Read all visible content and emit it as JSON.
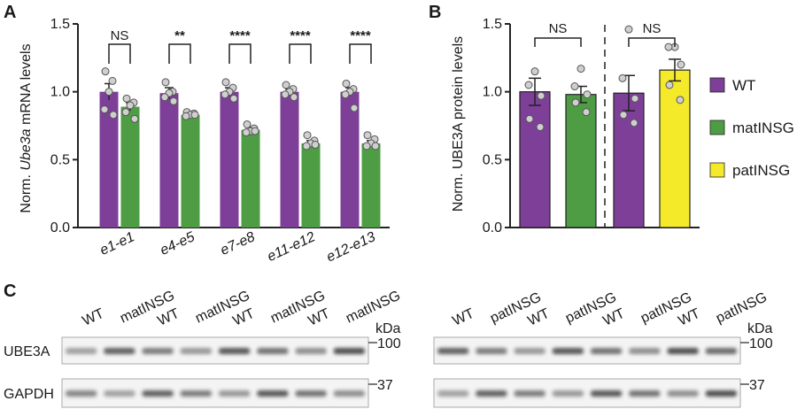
{
  "colors": {
    "WT": "#7e3f98",
    "matINSG": "#4e9d45",
    "patINSG": "#f5ea2a",
    "dot": "#cfcfcf"
  },
  "chart_data": [
    {
      "panel": "A",
      "type": "bar",
      "ylabel_pre": "Norm. ",
      "ylabel_italic": "Ube3a",
      "ylabel_post": " mRNA levels",
      "ylim": [
        0,
        1.5
      ],
      "yticks": [
        "0.0",
        "0.5",
        "1.0",
        "1.5"
      ],
      "categories": [
        "e1-e1",
        "e4-e5",
        "e7-e8",
        "e11-e12",
        "e12-e13"
      ],
      "series": [
        {
          "name": "WT",
          "values": [
            1.0,
            0.99,
            1.0,
            1.0,
            1.0
          ],
          "errors": [
            0.06,
            0.04,
            0.03,
            0.02,
            0.03
          ],
          "points": [
            [
              1.15,
              1.08,
              1.0,
              0.87,
              0.83
            ],
            [
              1.07,
              1.0,
              0.99,
              0.96,
              0.93
            ],
            [
              1.07,
              1.03,
              1.0,
              0.98,
              0.95
            ],
            [
              1.05,
              1.02,
              1.0,
              0.98,
              0.96
            ],
            [
              1.06,
              1.02,
              1.0,
              0.98,
              0.88
            ]
          ]
        },
        {
          "name": "matINSG",
          "values": [
            0.89,
            0.83,
            0.72,
            0.62,
            0.62
          ],
          "errors": [
            0.03,
            0.01,
            0.02,
            0.02,
            0.02
          ],
          "points": [
            [
              0.95,
              0.92,
              0.9,
              0.85,
              0.8
            ],
            [
              0.85,
              0.84,
              0.83,
              0.82,
              0.83
            ],
            [
              0.76,
              0.73,
              0.71,
              0.7,
              0.71
            ],
            [
              0.68,
              0.64,
              0.62,
              0.6,
              0.61
            ],
            [
              0.68,
              0.65,
              0.62,
              0.6,
              0.6
            ]
          ]
        }
      ],
      "significance": [
        "NS",
        "**",
        "****",
        "****",
        "****"
      ]
    },
    {
      "panel": "B",
      "type": "bar",
      "ylabel": "Norm. UBE3A protein levels",
      "ylim": [
        0,
        1.5
      ],
      "yticks": [
        "0.0",
        "0.5",
        "1.0",
        "1.5"
      ],
      "bars": [
        {
          "group": "WT",
          "value": 1.0,
          "error": 0.1,
          "points": [
            1.15,
            1.05,
            0.97,
            0.8,
            0.74
          ]
        },
        {
          "group": "matINSG",
          "value": 0.98,
          "error": 0.06,
          "points": [
            1.17,
            1.04,
            0.98,
            0.92,
            0.85
          ]
        },
        {
          "group": "WT",
          "value": 0.99,
          "error": 0.13,
          "points": [
            1.46,
            1.1,
            0.95,
            0.83,
            0.77
          ]
        },
        {
          "group": "patINSG",
          "value": 1.16,
          "error": 0.08,
          "points": [
            1.33,
            1.33,
            1.2,
            1.05,
            0.94
          ]
        }
      ],
      "significance": [
        "NS",
        "NS"
      ],
      "legend": [
        "WT",
        "matINSG",
        "patINSG"
      ]
    }
  ],
  "blots": {
    "panel": "C",
    "left_lanes": [
      "WT",
      "matINSG",
      "WT",
      "matINSG",
      "WT",
      "matINSG",
      "WT",
      "matINSG"
    ],
    "right_lanes": [
      "WT",
      "patINSG",
      "WT",
      "patINSG",
      "WT",
      "patINSG",
      "WT",
      "patINSG"
    ],
    "kda_label": "kDa",
    "rows": [
      {
        "label": "UBE3A",
        "marker": "100"
      },
      {
        "label": "GAPDH",
        "marker": "37"
      }
    ]
  }
}
